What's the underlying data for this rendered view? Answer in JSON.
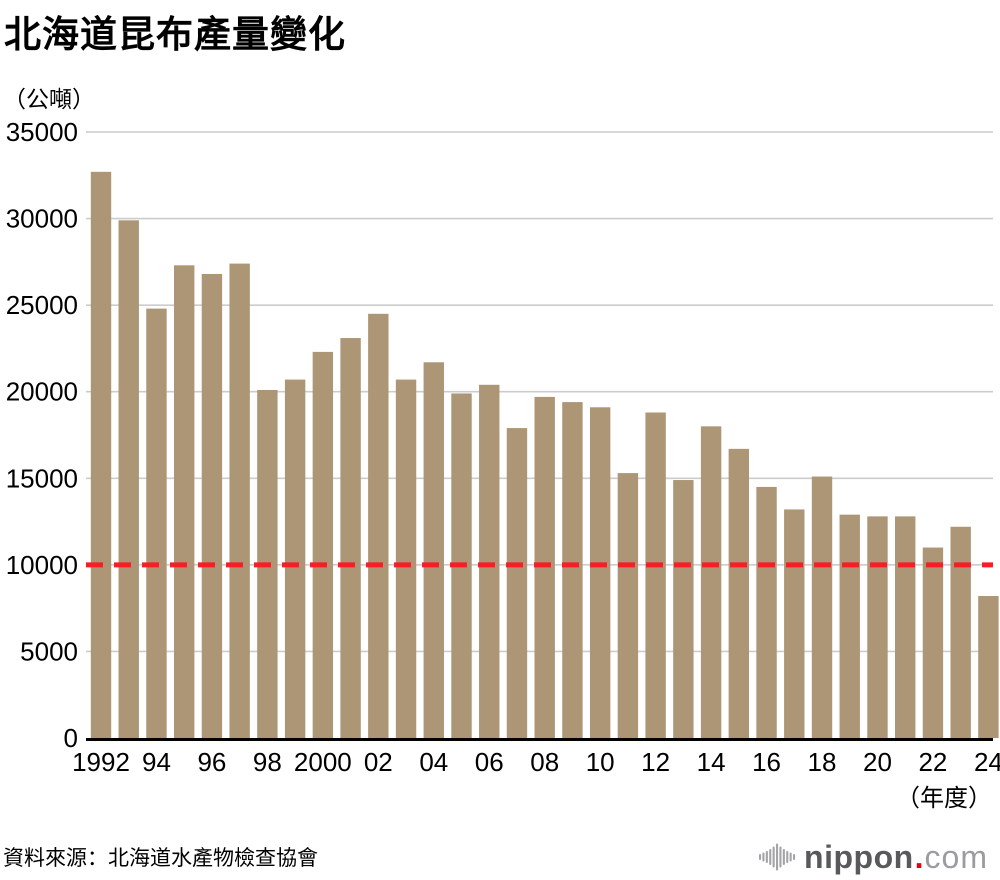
{
  "chart_data": {
    "type": "bar",
    "title": "北海道昆布產量變化",
    "unit_label": "（公噸）",
    "x_axis_note": "（年度）",
    "categories": [
      1992,
      1993,
      1994,
      1995,
      1996,
      1997,
      1998,
      1999,
      2000,
      2001,
      2002,
      2003,
      2004,
      2005,
      2006,
      2007,
      2008,
      2009,
      2010,
      2011,
      2012,
      2013,
      2014,
      2015,
      2016,
      2017,
      2018,
      2019,
      2020,
      2021,
      2022,
      2023,
      2024
    ],
    "values": [
      32700,
      29900,
      24800,
      27300,
      26800,
      27400,
      20100,
      20700,
      22300,
      23100,
      24500,
      20700,
      21700,
      19900,
      20400,
      17900,
      19700,
      19400,
      19100,
      15300,
      18800,
      14900,
      18000,
      16700,
      14500,
      13200,
      15100,
      12900,
      12800,
      12800,
      11000,
      12200,
      8200
    ],
    "x_tick_labels": [
      "1992",
      "94",
      "96",
      "98",
      "2000",
      "02",
      "04",
      "06",
      "08",
      "10",
      "12",
      "14",
      "16",
      "18",
      "20",
      "22",
      "24"
    ],
    "y_ticks": [
      35000,
      30000,
      25000,
      20000,
      15000,
      10000,
      5000,
      0
    ],
    "ylim": [
      0,
      35000
    ],
    "grid": true,
    "legend_position": "none",
    "reference_line": {
      "value": 10000,
      "style": "dashed",
      "color": "#f81e26"
    },
    "bar_color": "#ad9675",
    "grid_color": "#cccccc",
    "axis_color": "#000000"
  },
  "footer": {
    "source": "資料來源：北海道水產物檢查協會",
    "logo": {
      "name": "nippon",
      "dot": ".",
      "domain": "com"
    }
  }
}
